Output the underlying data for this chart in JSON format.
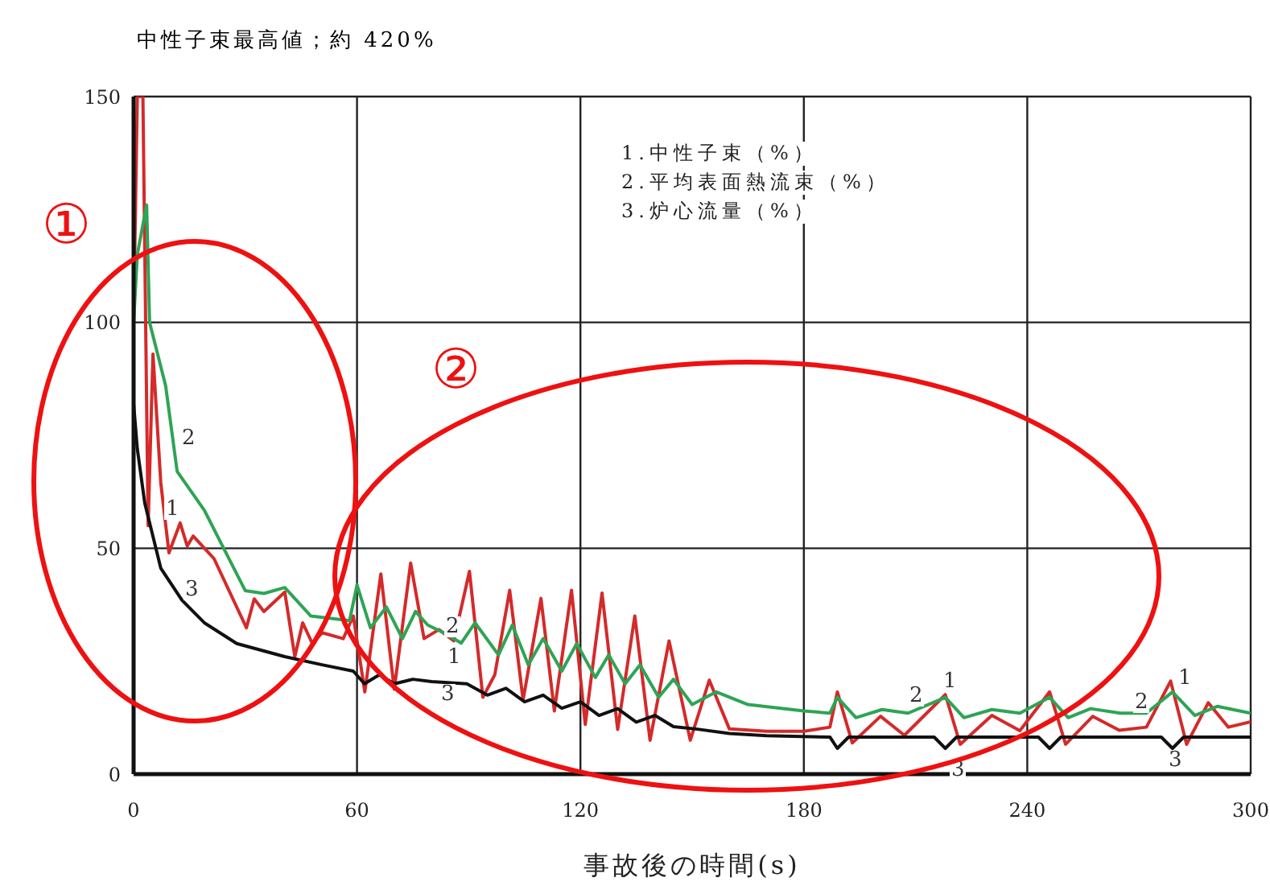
{
  "chart_data": {
    "type": "line",
    "title": "中性子束最高値；約 420%",
    "xlabel": "事故後の時間(s)",
    "xlim": [
      0,
      300
    ],
    "xticks": [
      0,
      60,
      120,
      180,
      240,
      300
    ],
    "ylim": [
      0,
      150
    ],
    "yticks": [
      0,
      50,
      100,
      150
    ],
    "grid": true,
    "legend": false,
    "marker": "none",
    "line_style": "solid",
    "series": [
      {
        "color": "#d42a2a",
        "x": [
          0,
          1,
          2.5,
          3.9,
          5.2,
          7.3,
          9.5,
          12.5,
          14.4,
          16,
          21.6,
          30.3,
          32.4,
          35,
          40.6,
          43.3,
          45.4,
          48,
          50.6,
          56.3,
          59,
          62.1,
          66.4,
          70,
          74.4,
          78,
          82,
          86,
          90.2,
          93.8,
          97,
          101,
          104.6,
          109.4,
          113,
          117.6,
          121.3,
          125.8,
          130,
          134.6,
          138.7,
          143.8,
          149.5,
          154.6,
          160,
          170,
          180,
          187,
          189,
          193,
          200.6,
          207,
          218,
          222,
          230.5,
          238,
          246,
          250.3,
          257.6,
          264.7,
          272,
          278.5,
          282.8,
          288.6,
          294,
          300
        ],
        "values": [
          100,
          150,
          150,
          55,
          93,
          64.5,
          49,
          55.6,
          50.5,
          52.7,
          47.7,
          32.4,
          38.8,
          36,
          40.3,
          26,
          33.5,
          28.9,
          31.3,
          30,
          35,
          18.2,
          44.3,
          18.8,
          46.7,
          30,
          32,
          29.5,
          44.9,
          17,
          22,
          40.7,
          16.4,
          38.9,
          14,
          40.7,
          11,
          40.1,
          9.9,
          35,
          7.5,
          29.5,
          7.5,
          20.8,
          10,
          9.5,
          9.5,
          10.4,
          18.2,
          6.9,
          12.8,
          8.6,
          17.6,
          6.6,
          13,
          9.6,
          18.2,
          6.6,
          12.8,
          9.7,
          10.4,
          20.6,
          6.6,
          15.8,
          10.4,
          11.6
        ]
      },
      {
        "color": "#2ea455",
        "x": [
          0,
          1,
          3.5,
          4.3,
          8.6,
          11.7,
          19,
          30,
          35,
          40.6,
          47.6,
          58,
          60,
          63.6,
          67.9,
          72.2,
          75.7,
          79,
          84,
          88,
          91.7,
          98,
          101.7,
          106,
          110,
          115,
          119,
          124,
          127.6,
          132,
          136,
          141,
          145,
          150,
          156.5,
          165,
          180,
          187,
          189,
          194,
          201,
          208,
          218,
          223,
          230.5,
          238,
          246,
          251,
          257,
          265,
          272,
          279,
          285,
          291,
          300
        ],
        "values": [
          100,
          115,
          126,
          100,
          86,
          67,
          58.4,
          40.6,
          40,
          41.3,
          35,
          34,
          41.9,
          32.4,
          37,
          30,
          36,
          33,
          31,
          29,
          33.5,
          26.4,
          33,
          24.2,
          30,
          22.8,
          28.9,
          21.4,
          26.4,
          20,
          24.2,
          17,
          21,
          15.4,
          18.2,
          15.4,
          14,
          13.5,
          17,
          12.5,
          14.3,
          13.5,
          17,
          12.5,
          14.3,
          13.5,
          17,
          12.5,
          14.5,
          13.5,
          13.5,
          18.2,
          13,
          15,
          13.5
        ]
      },
      {
        "color": "#111111",
        "x": [
          0,
          1,
          3,
          7.3,
          13,
          19,
          27.7,
          40.6,
          50.6,
          59,
          62,
          66,
          70,
          75,
          80,
          89.5,
          95,
          100,
          105,
          110,
          115,
          120,
          125,
          130,
          135,
          140,
          145,
          151,
          160,
          170,
          187,
          189,
          192,
          215,
          218,
          221,
          243,
          246,
          249,
          276,
          279,
          282,
          300
        ],
        "values": [
          82,
          72,
          60,
          45.6,
          38.5,
          33.5,
          28.9,
          26,
          24.2,
          22.8,
          20,
          22,
          20,
          21,
          20.5,
          20,
          17.5,
          19,
          16,
          17.5,
          14.6,
          16,
          13,
          14.5,
          11.5,
          13,
          10.5,
          10,
          9,
          8.5,
          8.2,
          5.7,
          8.2,
          8.2,
          5.7,
          8.2,
          8.2,
          5.7,
          8.2,
          8.2,
          5.7,
          8.2,
          8.2
        ]
      }
    ],
    "annotations": [
      "1.中性子束（%）",
      "2.平均表面熱流束（%）",
      "3.炉心流量（%）",
      "①",
      "②",
      "2",
      "1",
      "3",
      "2",
      "1",
      "3",
      "2",
      "1",
      "3",
      "2",
      "1",
      "3"
    ]
  }
}
